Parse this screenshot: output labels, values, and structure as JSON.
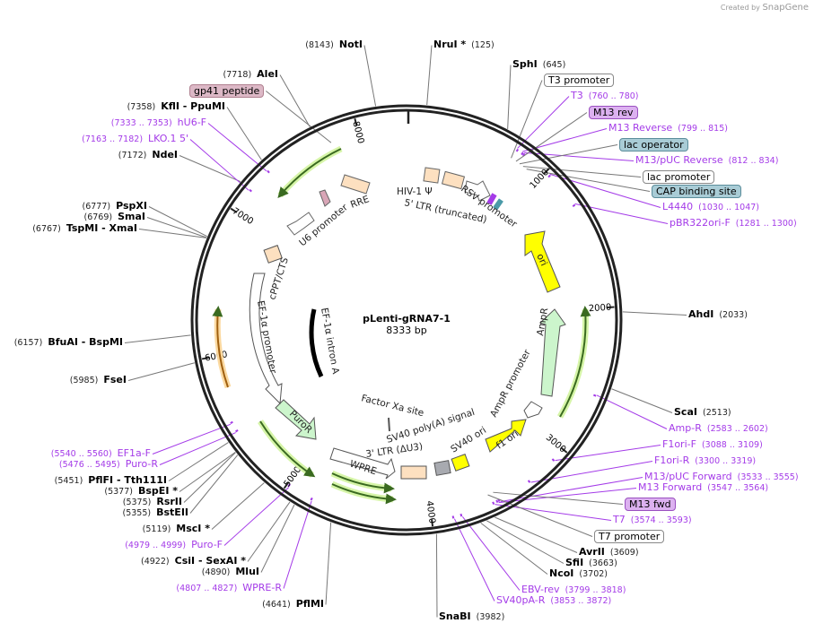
{
  "credit": {
    "prefix": "Created by",
    "brand": "SnapGene"
  },
  "plasmid": {
    "name": "pLenti-gRNA7-1",
    "length_text": "8333 bp",
    "length": 8333
  },
  "ticks": [
    "1000",
    "2000",
    "3000",
    "4000",
    "5000",
    "6000",
    "7000",
    "8000"
  ],
  "sites": [
    {
      "name": "NruI *",
      "pos": 125
    },
    {
      "name": "NotI",
      "pos": 8143
    },
    {
      "name": "SphI",
      "pos": 645
    },
    {
      "name": "AleI",
      "pos": 7718
    },
    {
      "name": "KflI  - PpuMI",
      "pos": 7358
    },
    {
      "name": "NdeI",
      "pos": 7172
    },
    {
      "name": "PspXI",
      "pos": 6777
    },
    {
      "name": "SmaI",
      "pos": 6769
    },
    {
      "name": "TspMI  - XmaI",
      "pos": 6767
    },
    {
      "name": "BfuAI  - BspMI",
      "pos": 6157
    },
    {
      "name": "FseI",
      "pos": 5985
    },
    {
      "name": "PflFI  - Tth111I",
      "pos": 5451
    },
    {
      "name": "BspEI *",
      "pos": 5377
    },
    {
      "name": "RsrII",
      "pos": 5375
    },
    {
      "name": "BstEII",
      "pos": 5355
    },
    {
      "name": "MscI *",
      "pos": 5119
    },
    {
      "name": "CsiI  - SexAI *",
      "pos": 4922
    },
    {
      "name": "MluI",
      "pos": 4890
    },
    {
      "name": "PflMI",
      "pos": 4641
    },
    {
      "name": "SnaBI",
      "pos": 3982
    },
    {
      "name": "NcoI",
      "pos": 3702
    },
    {
      "name": "SfiI",
      "pos": 3663
    },
    {
      "name": "AvrII",
      "pos": 3609
    },
    {
      "name": "ScaI",
      "pos": 2513
    },
    {
      "name": "AhdI",
      "pos": 2033
    }
  ],
  "primers": [
    {
      "name": "T3",
      "range": "760 .. 780"
    },
    {
      "name": "M13 Reverse",
      "range": "799 .. 815"
    },
    {
      "name": "M13/pUC Reverse",
      "range": "812 .. 834"
    },
    {
      "name": "L4440",
      "range": "1030 .. 1047"
    },
    {
      "name": "pBR322ori-F",
      "range": "1281 .. 1300"
    },
    {
      "name": "Amp-R",
      "range": "2583 .. 2602"
    },
    {
      "name": "F1ori-F",
      "range": "3088 .. 3109"
    },
    {
      "name": "F1ori-R",
      "range": "3300 .. 3319"
    },
    {
      "name": "M13/pUC Forward",
      "range": "3533 .. 3555"
    },
    {
      "name": "M13 Forward",
      "range": "3547 .. 3564"
    },
    {
      "name": "T7",
      "range": "3574 .. 3593"
    },
    {
      "name": "EBV-rev",
      "range": "3799 .. 3818"
    },
    {
      "name": "SV40pA-R",
      "range": "3853 .. 3872"
    },
    {
      "name": "WPRE-R",
      "range": "4807 .. 4827"
    },
    {
      "name": "Puro-F",
      "range": "4979 .. 4999"
    },
    {
      "name": "Puro-R",
      "range": "5476 .. 5495"
    },
    {
      "name": "EF1a-F",
      "range": "5540 .. 5560"
    },
    {
      "name": "LKO.1 5'",
      "range": "7163 .. 7182"
    },
    {
      "name": "hU6-F",
      "range": "7333 .. 7353"
    }
  ],
  "boxed_features": {
    "t3_promoter": "T3 promoter",
    "m13_rev": "M13 rev",
    "lac_operator": "lac operator",
    "lac_promoter": "lac promoter",
    "cap_binding_site": "CAP binding site",
    "m13_fwd": "M13 fwd",
    "t7_promoter": "T7 promoter",
    "gp41_peptide": "gp41 peptide"
  },
  "features": {
    "rre": "RRE",
    "u6": "U6 promoter",
    "hiv_psi": "HIV-1 Ψ",
    "ltr5": "5' LTR (truncated)",
    "rsv": "RSV promoter",
    "ori": "ori",
    "ampr": "AmpR",
    "ampr_promoter": "AmpR promoter",
    "f1_ori": "f1 ori",
    "sv40_ori": "SV40 ori",
    "sv40_polya": "SV40 poly(A) signal",
    "ltr3": "3' LTR (ΔU3)",
    "wpre": "WPRE",
    "factor_xa": "Factor Xa site",
    "puror": "PuroR",
    "ef1a_promoter": "EF-1α promoter",
    "ef1a_intron": "EF-1α intron A",
    "cppt": "cPPT/CTS"
  },
  "colors": {
    "primer": "#a43be8",
    "ori": "#ffff00",
    "cds": "#ccf5cc",
    "peach": "#fde0c0",
    "teal": "#a9ccd6"
  }
}
